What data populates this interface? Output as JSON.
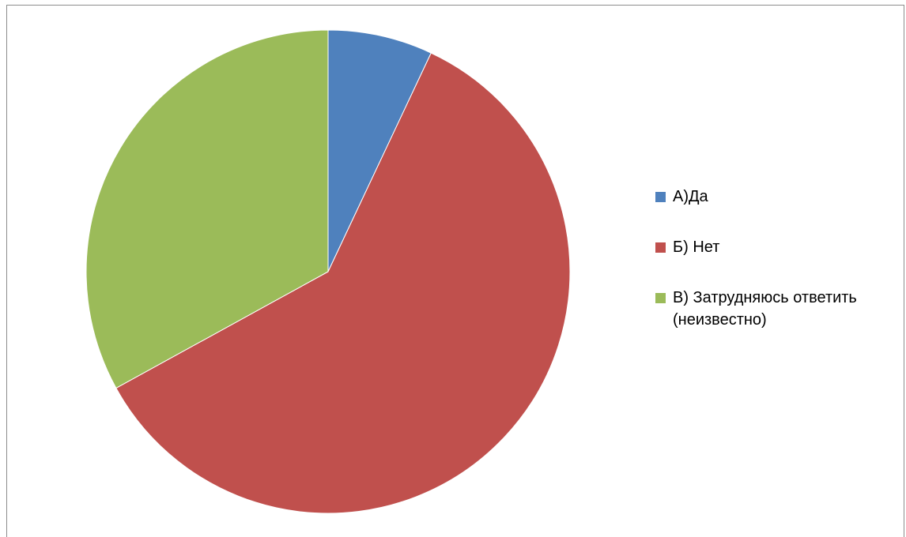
{
  "chart_data": {
    "type": "pie",
    "categories": [
      "А)Да",
      "Б) Нет",
      "В) Затрудняюсь ответить (неизвестно)"
    ],
    "values": [
      7,
      60,
      33
    ],
    "colors": [
      "#4f81bd",
      "#c0504d",
      "#9bbb59"
    ],
    "legend_position": "right"
  },
  "legend": {
    "items": [
      {
        "label": "А)Да",
        "color": "#4f81bd"
      },
      {
        "label": "Б) Нет",
        "color": "#c0504d"
      },
      {
        "label": "В) Затрудняюсь ответить (неизвестно)",
        "color": "#9bbb59"
      }
    ]
  }
}
